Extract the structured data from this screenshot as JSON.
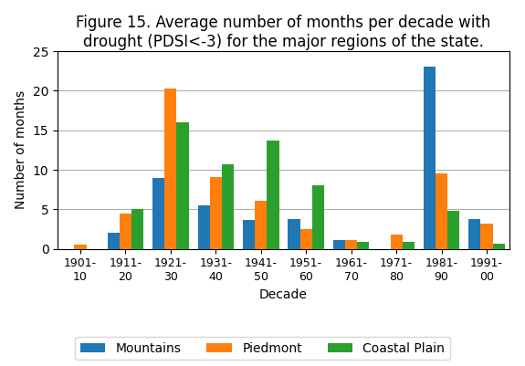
{
  "chart_data": {
    "type": "bar",
    "title": "Figure 15. Average number of months per decade with\ndrought (PDSI<-3) for the major regions of the state.",
    "xlabel": "Decade",
    "ylabel": "Number of months",
    "categories": [
      "1901-\n10",
      "1911-\n20",
      "1921-\n30",
      "1931-\n40",
      "1941-\n50",
      "1951-\n60",
      "1961-\n70",
      "1971-\n80",
      "1981-\n90",
      "1991-\n00"
    ],
    "series": [
      {
        "name": "Mountains",
        "values": [
          0,
          2,
          9,
          5.5,
          3.7,
          3.8,
          1.1,
          0,
          23,
          3.8
        ]
      },
      {
        "name": "Piedmont",
        "values": [
          0.5,
          4.5,
          20.3,
          9.1,
          6.1,
          2.5,
          1.1,
          1.8,
          9.6,
          3.2
        ]
      },
      {
        "name": "Coastal Plain",
        "values": [
          0,
          5,
          16,
          10.7,
          13.7,
          8,
          0.9,
          0.9,
          4.8,
          0.6
        ]
      }
    ],
    "ylim": [
      0,
      25
    ],
    "yticks": [
      0,
      5,
      10,
      15,
      20,
      25
    ],
    "grid": true,
    "legend": "lower center"
  }
}
